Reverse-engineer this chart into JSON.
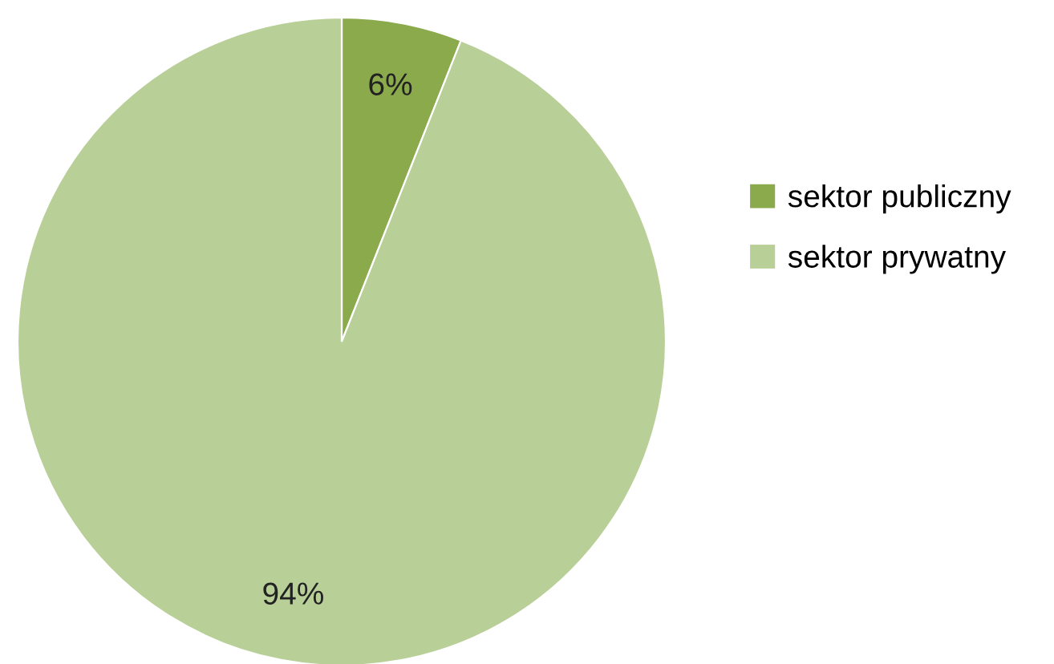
{
  "chart_data": {
    "type": "pie",
    "categories": [
      "sektor publiczny",
      "sektor prywatny"
    ],
    "values": [
      6,
      94
    ],
    "value_labels": [
      "6%",
      "94%"
    ],
    "colors": [
      "#8aaa4c",
      "#b9cf98"
    ],
    "legend": "right"
  }
}
